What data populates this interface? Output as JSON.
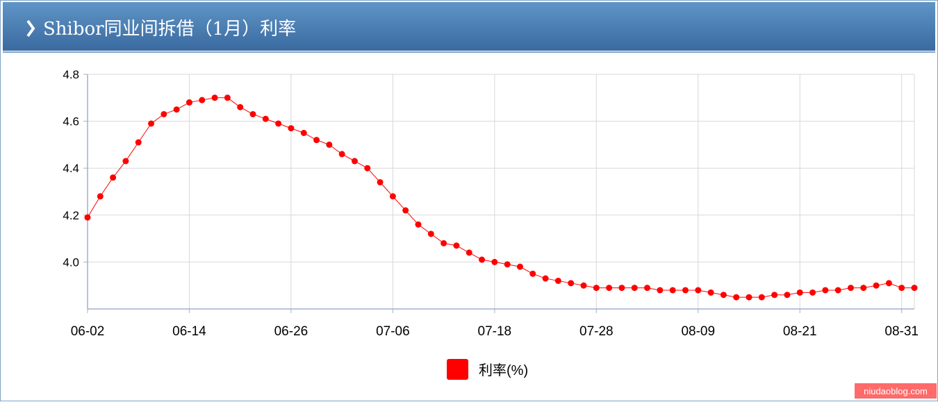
{
  "chart_data": {
    "type": "line",
    "title": "Shibor同业间拆借（1月）利率",
    "categories": [
      "06-02",
      null,
      null,
      null,
      null,
      null,
      null,
      null,
      "06-14",
      null,
      null,
      null,
      null,
      null,
      null,
      null,
      "06-26",
      null,
      null,
      null,
      null,
      null,
      null,
      null,
      "07-06",
      null,
      null,
      null,
      null,
      null,
      null,
      null,
      "07-18",
      null,
      null,
      null,
      null,
      null,
      null,
      null,
      "07-28",
      null,
      null,
      null,
      null,
      null,
      null,
      null,
      "08-09",
      null,
      null,
      null,
      null,
      null,
      null,
      null,
      "08-21",
      null,
      null,
      null,
      null,
      null,
      null,
      null,
      "08-31",
      null
    ],
    "series": [
      {
        "name": "利率(%)",
        "color": "#ff0000",
        "values": [
          4.19,
          4.28,
          4.36,
          4.43,
          4.51,
          4.59,
          4.63,
          4.65,
          4.68,
          4.69,
          4.7,
          4.7,
          4.66,
          4.63,
          4.61,
          4.59,
          4.57,
          4.55,
          4.52,
          4.5,
          4.46,
          4.43,
          4.4,
          4.34,
          4.28,
          4.22,
          4.16,
          4.12,
          4.08,
          4.07,
          4.04,
          4.01,
          4.0,
          3.99,
          3.98,
          3.95,
          3.93,
          3.92,
          3.91,
          3.9,
          3.89,
          3.89,
          3.89,
          3.89,
          3.89,
          3.88,
          3.88,
          3.88,
          3.88,
          3.87,
          3.86,
          3.85,
          3.85,
          3.85,
          3.86,
          3.86,
          3.87,
          3.87,
          3.88,
          3.88,
          3.89,
          3.89,
          3.9,
          3.91,
          3.89,
          3.89
        ]
      }
    ],
    "ylim": [
      3.8,
      4.8
    ],
    "yticks": [
      {
        "value": 4.0,
        "label": "4.0"
      },
      4.2,
      4.4,
      4.6,
      4.8
    ],
    "grid": true,
    "legend": "bottom",
    "watermark": "niudaoblog.com"
  }
}
